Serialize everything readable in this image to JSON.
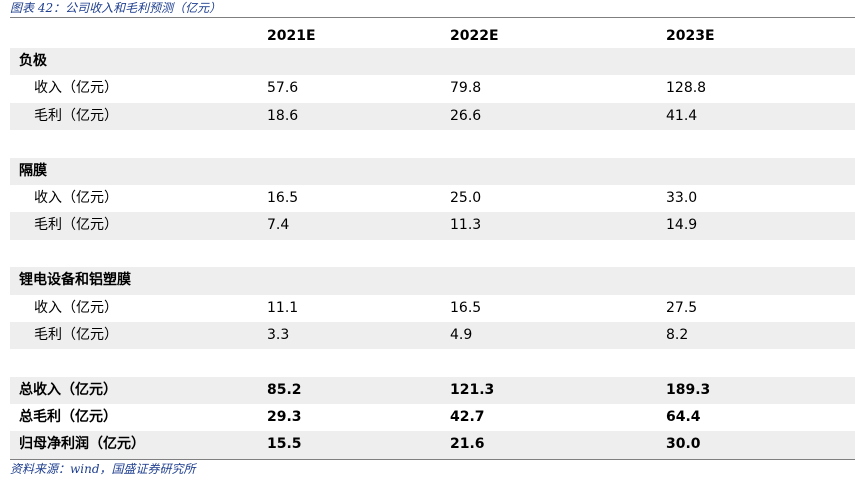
{
  "caption": "图表 42：公司收入和毛利预测（亿元）",
  "header": {
    "col1": "2021E",
    "col2": "2022E",
    "col3": "2023E"
  },
  "sections": [
    {
      "title": "负极",
      "rows": [
        {
          "label": "收入（亿元）",
          "v": [
            "57.6",
            "79.8",
            "128.8"
          ]
        },
        {
          "label": "毛利（亿元）",
          "v": [
            "18.6",
            "26.6",
            "41.4"
          ]
        }
      ]
    },
    {
      "title": "隔膜",
      "rows": [
        {
          "label": "收入（亿元）",
          "v": [
            "16.5",
            "25.0",
            "33.0"
          ]
        },
        {
          "label": "毛利（亿元）",
          "v": [
            "7.4",
            "11.3",
            "14.9"
          ]
        }
      ]
    },
    {
      "title": "锂电设备和铝塑膜",
      "rows": [
        {
          "label": "收入（亿元）",
          "v": [
            "11.1",
            "16.5",
            "27.5"
          ]
        },
        {
          "label": "毛利（亿元）",
          "v": [
            "3.3",
            "4.9",
            "8.2"
          ]
        }
      ]
    }
  ],
  "totals": [
    {
      "label": "总收入（亿元）",
      "v": [
        "85.2",
        "121.3",
        "189.3"
      ]
    },
    {
      "label": "总毛利（亿元）",
      "v": [
        "29.3",
        "42.7",
        "64.4"
      ]
    },
    {
      "label": "归母净利润（亿元）",
      "v": [
        "15.5",
        "21.6",
        "30.0"
      ]
    }
  ],
  "source": "资料来源：wind，国盛证券研究所"
}
